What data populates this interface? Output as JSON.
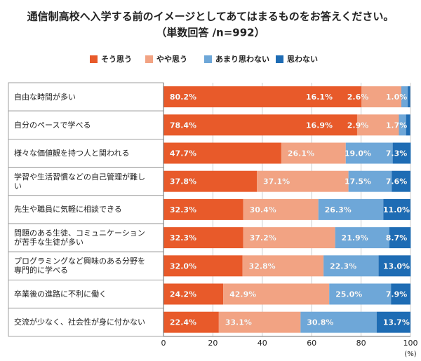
{
  "chart_data": {
    "type": "stacked-bar-horizontal",
    "title": "通信制高校へ入学する前のイメージとしてあてはまるものをお答えください。",
    "subtitle": "（単数回答 /n=992）",
    "x_label": "(%)",
    "categories": [
      "自由な時間が多い",
      "自分のペースで学べる",
      "様々な価値観を持つ人と関われる",
      "学習や生活習慣などの自己管理が難しい",
      "先生や職員に気軽に相談できる",
      "問題のある生徒、コミュニケーションが苦手な生徒が多い",
      "プログラミングなど興味のある分野を専門的に学べる",
      "卒業後の進路に不利に働く",
      "交流が少なく、社会性が身に付かない"
    ],
    "series": [
      {
        "name": "そう思う",
        "color": "#e85a2a",
        "values": [
          80.2,
          78.4,
          47.7,
          37.8,
          32.3,
          32.3,
          32.0,
          24.2,
          22.4
        ],
        "value_labels": [
          "80.2%",
          "78.4%",
          "47.7%",
          "37.8%",
          "32.3%",
          "32.3%",
          "32.0%",
          "24.2%",
          "22.4%"
        ]
      },
      {
        "name": "やや思う",
        "color": "#f2a383",
        "values": [
          16.1,
          16.9,
          26.1,
          37.1,
          30.4,
          37.2,
          32.8,
          42.9,
          33.1
        ],
        "value_labels": [
          "16.1%",
          "16.9%",
          "26.1%",
          "37.1%",
          "30.4%",
          "37.2%",
          "32.8%",
          "42.9%",
          "33.1%"
        ]
      },
      {
        "name": "あまり思わない",
        "color": "#6ea7d8",
        "values": [
          2.6,
          2.9,
          19.0,
          17.5,
          26.3,
          21.9,
          22.3,
          25.0,
          30.8
        ],
        "value_labels": [
          "2.6%",
          "2.9%",
          "19.0%",
          "17.5%",
          "26.3%",
          "21.9%",
          "22.3%",
          "25.0%",
          "30.8%"
        ]
      },
      {
        "name": "思わない",
        "color": "#1e6cb4",
        "values": [
          1.0,
          1.7,
          7.3,
          7.6,
          11.0,
          8.7,
          13.0,
          7.9,
          13.7
        ],
        "value_labels": [
          "1.0%",
          "1.7%",
          "7.3%",
          "7.6%",
          "11.0%",
          "8.7%",
          "13.0%",
          "7.9%",
          "13.7%"
        ]
      }
    ],
    "xlim": [
      0,
      100
    ],
    "xticks": [
      0,
      20,
      40,
      60,
      80,
      100
    ],
    "grid": true,
    "legend": "top"
  }
}
